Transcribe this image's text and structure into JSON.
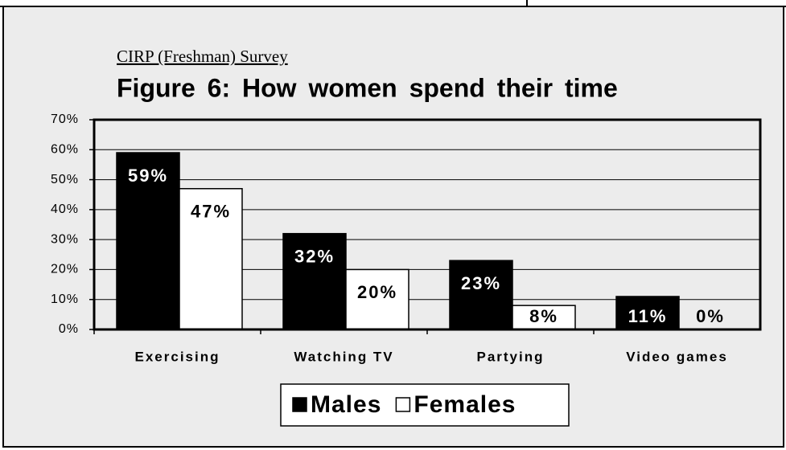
{
  "chart_data": {
    "type": "bar",
    "subtitle": "CIRP (Freshman) Survey",
    "title": "Figure 6: How women spend their time",
    "categories": [
      "Exercising",
      "Watching TV",
      "Partying",
      "Video games"
    ],
    "series": [
      {
        "name": "Males",
        "color": "#000000",
        "values": [
          59,
          32,
          23,
          11
        ],
        "value_labels": [
          "59%",
          "32%",
          "23%",
          "11%"
        ]
      },
      {
        "name": "Females",
        "color": "#ffffff",
        "values": [
          47,
          20,
          8,
          0
        ],
        "value_labels": [
          "47%",
          "20%",
          "8%",
          "0%"
        ]
      }
    ],
    "ylim": [
      0,
      70
    ],
    "yticks": [
      {
        "value": 0,
        "label": "0%"
      },
      {
        "value": 10,
        "label": "10%"
      },
      {
        "value": 20,
        "label": "20%"
      },
      {
        "value": 30,
        "label": "30%"
      },
      {
        "value": 40,
        "label": "40%"
      },
      {
        "value": 50,
        "label": "50%"
      },
      {
        "value": 60,
        "label": "60%"
      },
      {
        "value": 70,
        "label": "70%"
      }
    ],
    "grid": true,
    "legend": "bottom"
  }
}
